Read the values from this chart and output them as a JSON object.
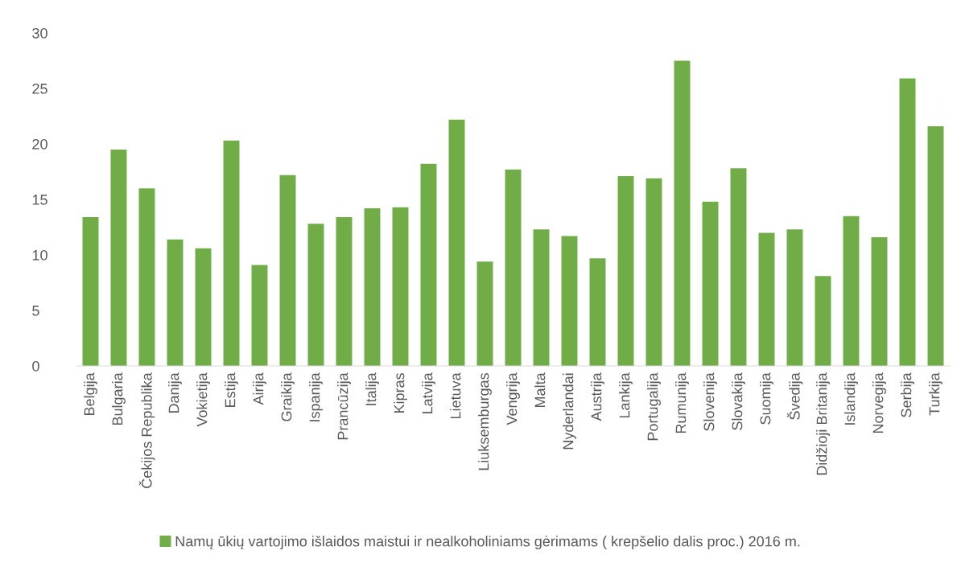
{
  "chart_data": {
    "type": "bar",
    "categories": [
      "Belgija",
      "Bulgaria",
      "Čekijos Republika",
      "Danija",
      "Vokietija",
      "Estija",
      "Airija",
      "Graikija",
      "Ispanija",
      "Prancūzija",
      "Italija",
      "Kipras",
      "Latvija",
      "Lietuva",
      "Liuksemburgas",
      "Vengrija",
      "Malta",
      "Nyderlandai",
      "Austrija",
      "Lankija",
      "Portugalija",
      "Rumunija",
      "Slovenija",
      "Slovakija",
      "Suomija",
      "Švedija",
      "Didžioji Britanija",
      "Islandija",
      "Norvegija",
      "Serbija",
      "Turkija"
    ],
    "series": [
      {
        "name": "Namų ūkių vartojimo išlaidos maistui ir nealkoholiniams gėrimams ( krepšelio dalis proc.) 2016 m.",
        "color": "#70ad47",
        "values": [
          13.4,
          19.5,
          16.0,
          11.4,
          10.6,
          20.3,
          9.1,
          17.2,
          12.8,
          13.4,
          14.2,
          14.3,
          18.2,
          22.2,
          9.4,
          17.7,
          12.3,
          11.7,
          9.7,
          17.1,
          16.9,
          27.5,
          14.8,
          17.8,
          12.0,
          12.3,
          8.1,
          13.5,
          11.6,
          25.9,
          21.6
        ]
      }
    ],
    "ylim": [
      0,
      30
    ],
    "yticks": [
      0,
      5,
      10,
      15,
      20,
      25,
      30
    ],
    "grid": false,
    "legend": "bottom"
  }
}
